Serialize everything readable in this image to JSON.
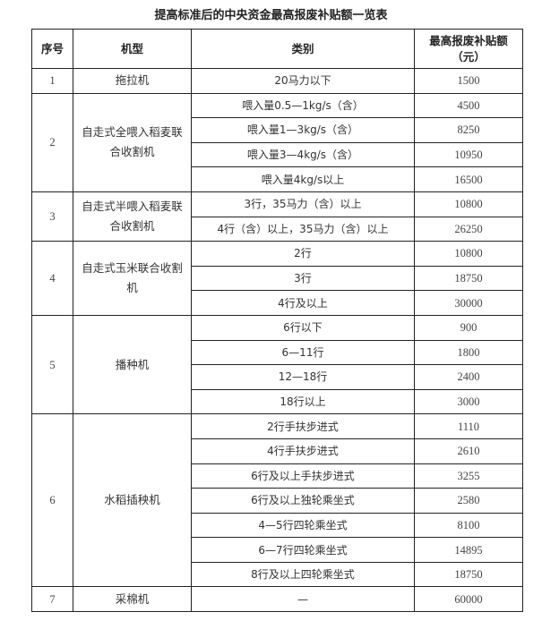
{
  "title": "提高标准后的中央资金最高报废补贴额一览表",
  "headers": {
    "seq": "序号",
    "model": "机型",
    "category": "类别",
    "amount": "最高报废补贴额（元）"
  },
  "groups": [
    {
      "seq": "1",
      "model": "拖拉机",
      "items": [
        {
          "category": "20马力以下",
          "amount": "1500"
        }
      ]
    },
    {
      "seq": "2",
      "model": "自走式全喂入稻麦联合收割机",
      "items": [
        {
          "category": "喂入量0.5—1kg/s（含）",
          "amount": "4500"
        },
        {
          "category": "喂入量1—3kg/s（含）",
          "amount": "8250"
        },
        {
          "category": "喂入量3—4kg/s（含）",
          "amount": "10950"
        },
        {
          "category": "喂入量4kg/s以上",
          "amount": "16500"
        }
      ]
    },
    {
      "seq": "3",
      "model": "自走式半喂入稻麦联合收割机",
      "items": [
        {
          "category": "3行，35马力（含）以上",
          "amount": "10800"
        },
        {
          "category": "4行（含）以上，35马力（含）以上",
          "amount": "26250"
        }
      ]
    },
    {
      "seq": "4",
      "model": "自走式玉米联合收割机",
      "items": [
        {
          "category": "2行",
          "amount": "10800"
        },
        {
          "category": "3行",
          "amount": "18750"
        },
        {
          "category": "4行及以上",
          "amount": "30000"
        }
      ]
    },
    {
      "seq": "5",
      "model": "播种机",
      "items": [
        {
          "category": "6行以下",
          "amount": "900"
        },
        {
          "category": "6—11行",
          "amount": "1800"
        },
        {
          "category": "12—18行",
          "amount": "2400"
        },
        {
          "category": "18行以上",
          "amount": "3000"
        }
      ]
    },
    {
      "seq": "6",
      "model": "水稻插秧机",
      "items": [
        {
          "category": "2行手扶步进式",
          "amount": "1110"
        },
        {
          "category": "4行手扶步进式",
          "amount": "2610"
        },
        {
          "category": "6行及以上手扶步进式",
          "amount": "3255"
        },
        {
          "category": "6行及以上独轮乘坐式",
          "amount": "2580"
        },
        {
          "category": "4—5行四轮乘坐式",
          "amount": "8100"
        },
        {
          "category": "6—7行四轮乘坐式",
          "amount": "14895"
        },
        {
          "category": "8行及以上四轮乘坐式",
          "amount": "18750"
        }
      ]
    },
    {
      "seq": "7",
      "model": "采棉机",
      "items": [
        {
          "category": "—",
          "amount": "60000"
        }
      ]
    }
  ]
}
